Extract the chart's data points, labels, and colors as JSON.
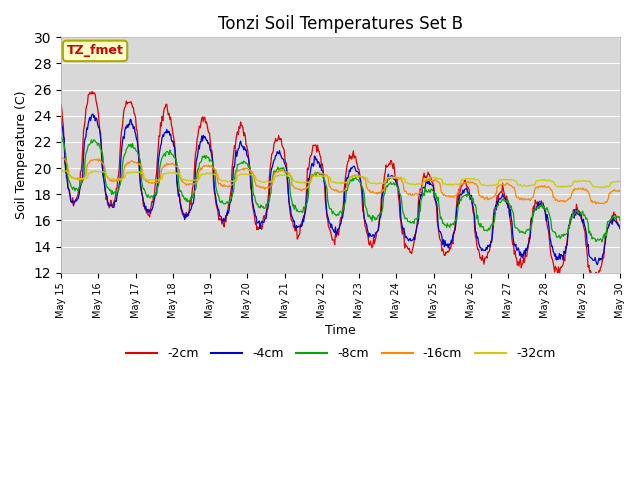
{
  "title": "Tonzi Soil Temperatures Set B",
  "xlabel": "Time",
  "ylabel": "Soil Temperature (C)",
  "ylim": [
    12,
    30
  ],
  "yticks": [
    12,
    14,
    16,
    18,
    20,
    22,
    24,
    26,
    28,
    30
  ],
  "annotation_text": "TZ_fmet",
  "annotation_box_color": "#ffffcc",
  "annotation_box_edge": "#aaaa00",
  "annotation_text_color": "#cc0000",
  "background_color": "#d8d8d8",
  "series": [
    {
      "label": "-2cm",
      "color": "#dd0000",
      "linewidth": 0.9
    },
    {
      "label": "-4cm",
      "color": "#0000cc",
      "linewidth": 0.9
    },
    {
      "label": "-8cm",
      "color": "#00aa00",
      "linewidth": 0.9
    },
    {
      "label": "-16cm",
      "color": "#ff8800",
      "linewidth": 0.9
    },
    {
      "label": "-32cm",
      "color": "#cccc00",
      "linewidth": 0.9
    }
  ],
  "n_days": 15,
  "start_day": 15,
  "points_per_day": 48,
  "xtick_days": [
    15,
    16,
    17,
    18,
    19,
    20,
    21,
    22,
    23,
    24,
    25,
    26,
    27,
    28,
    29,
    30
  ],
  "figsize": [
    6.4,
    4.8
  ],
  "dpi": 100
}
